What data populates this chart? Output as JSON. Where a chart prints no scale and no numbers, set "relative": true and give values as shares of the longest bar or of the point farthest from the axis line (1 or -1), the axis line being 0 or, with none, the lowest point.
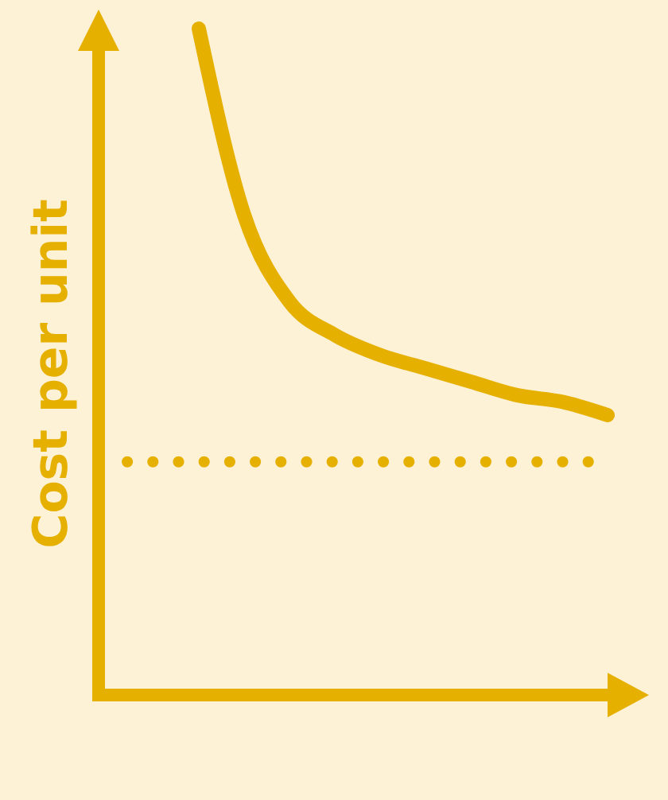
{
  "chart_data": {
    "type": "line",
    "relative": true,
    "ylabel": "Cost per unit",
    "categories": [
      null,
      null,
      null,
      null,
      null,
      null,
      null,
      null,
      null,
      null
    ],
    "series": [
      {
        "color": "#e6b000",
        "values": [
          1.0,
          0.72,
          0.59,
          0.54,
          0.51,
          0.49,
          0.47,
          0.45,
          0.44,
          0.42
        ]
      }
    ],
    "ref_lines": [
      {
        "axis": "y",
        "value": 0.35,
        "color": "#e6b000",
        "line_style": "dotted"
      }
    ],
    "marker": "none",
    "line_style": "solid"
  }
}
